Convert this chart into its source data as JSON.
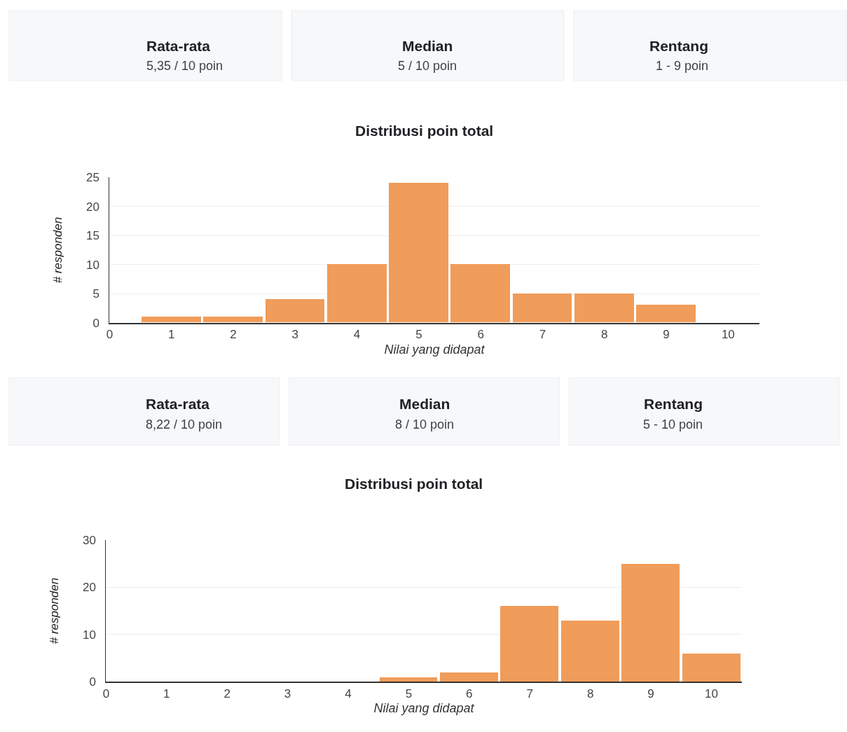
{
  "chart_data": [
    {
      "type": "other",
      "annotations": [
        "Rata-rata",
        "5,35 / 10 poin",
        "Median",
        "5 / 10 poin",
        "Rentang",
        "1 - 9 poin"
      ]
    },
    {
      "type": "bar",
      "title": "Distribusi poin total",
      "xlabel": "Nilai yang didapat",
      "ylabel": "# responden",
      "x": [
        1,
        2,
        3,
        4,
        5,
        6,
        7,
        8,
        9,
        10
      ],
      "values": [
        1,
        1,
        4,
        10,
        24,
        10,
        5,
        5,
        3,
        0
      ],
      "color": "#f09c5a",
      "xlim": [
        0,
        10.5
      ],
      "xticks": [
        0,
        1,
        2,
        3,
        4,
        5,
        6,
        7,
        8,
        9,
        10
      ],
      "ylim": [
        0,
        25
      ],
      "yticks": [
        0,
        5,
        10,
        15,
        20,
        25
      ],
      "grid": "y"
    },
    {
      "type": "other",
      "annotations": [
        "Rata-rata",
        "8,22 / 10 poin",
        "Median",
        "8 / 10 poin",
        "Rentang",
        "5 - 10 poin"
      ]
    },
    {
      "type": "bar",
      "title": "Distribusi poin total",
      "xlabel": "Nilai yang didapat",
      "ylabel": "# responden",
      "x": [
        1,
        2,
        3,
        4,
        5,
        6,
        7,
        8,
        9,
        10
      ],
      "values": [
        0,
        0,
        0,
        0,
        1,
        2,
        16,
        13,
        25,
        6
      ],
      "color": "#f09c5a",
      "xlim": [
        0,
        10.5
      ],
      "xticks": [
        0,
        1,
        2,
        3,
        4,
        5,
        6,
        7,
        8,
        9,
        10
      ],
      "ylim": [
        0,
        30
      ],
      "yticks": [
        0,
        10,
        20,
        30
      ],
      "grid": "y"
    }
  ]
}
